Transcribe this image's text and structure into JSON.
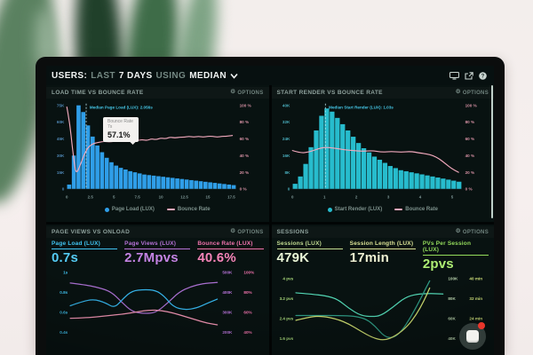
{
  "header": {
    "title_prefix": "USERS:",
    "seg_last": "LAST",
    "seg_days": "7 DAYS",
    "seg_using": "USING",
    "seg_median": "MEDIAN"
  },
  "panels": [
    {
      "title": "LOAD TIME VS BOUNCE RATE",
      "options_label": "OPTIONS"
    },
    {
      "title": "START RENDER VS BOUNCE RATE",
      "options_label": "OPTIONS"
    },
    {
      "title": "PAGE VIEWS VS ONLOAD",
      "options_label": "OPTIONS",
      "metrics": [
        {
          "label": "Page Load (LUX)",
          "value": "0.7s",
          "color": "#41c4f2",
          "value_color": "#55ccf5"
        },
        {
          "label": "Page Views (LUX)",
          "value": "2.7Mpvs",
          "color": "#b873d9",
          "value_color": "#c483e3"
        },
        {
          "label": "Bounce Rate (LUX)",
          "value": "40.6%",
          "color": "#f173ad",
          "value_color": "#f584b8"
        }
      ]
    },
    {
      "title": "SESSIONS",
      "options_label": "OPTIONS",
      "metrics": [
        {
          "label": "Sessions (LUX)",
          "value": "479K",
          "color": "#c4dd92",
          "value_color": "#e9f5d6"
        },
        {
          "label": "Session Length (LUX)",
          "value": "17min",
          "color": "#dbe295",
          "value_color": "#eef0d2"
        },
        {
          "label": "PVs Per Session (LUX)",
          "value": "2pvs",
          "color": "#94dc5c",
          "value_color": "#aeee74"
        }
      ]
    }
  ],
  "chart_data": [
    {
      "type": "bar",
      "name": "load_time_vs_bounce_rate",
      "title": "LOAD TIME VS BOUNCE RATE",
      "x_unit": "seconds",
      "x_max": 18,
      "x_ticks": [
        "0",
        "2.5",
        "5",
        "7.5",
        "10",
        "12.5",
        "15",
        "17.5"
      ],
      "y_left_ticks": [
        "75K",
        "60K",
        "45K",
        "30K",
        "15K",
        "0"
      ],
      "y_left_max_k": 75,
      "y_right_ticks": [
        "100 %",
        "80 %",
        "60 %",
        "40 %",
        "20 %",
        "0 %"
      ],
      "bar_color": "#2f9ee8",
      "line_color": "#f2a9bd",
      "axis_left_color": "#4f87b5",
      "axis_x_color": "#7f9898",
      "axis_right_color": "#d791a4",
      "bars_k": [
        4,
        30,
        75,
        69,
        57,
        47,
        39,
        33,
        28,
        24,
        21,
        19,
        17.5,
        16,
        15,
        14,
        13,
        12.5,
        12,
        11.5,
        11,
        10.5,
        10,
        9.5,
        9,
        8.5,
        8,
        7.5,
        7,
        6.5,
        6,
        5.5,
        5,
        4.5,
        4,
        3.5
      ],
      "bounce_line": [
        [
          0,
          98
        ],
        [
          0.3,
          80
        ],
        [
          0.6,
          48
        ],
        [
          0.9,
          22
        ],
        [
          1.1,
          20
        ],
        [
          1.4,
          28
        ],
        [
          1.8,
          40
        ],
        [
          2.2,
          49
        ],
        [
          2.6,
          53
        ],
        [
          3,
          55
        ],
        [
          3.5,
          56
        ],
        [
          4,
          57
        ],
        [
          4.5,
          56
        ],
        [
          5,
          57
        ],
        [
          5.5,
          58
        ],
        [
          6,
          57
        ],
        [
          6.5,
          57
        ],
        [
          7,
          57.1
        ],
        [
          7.5,
          58
        ],
        [
          8,
          59
        ],
        [
          8.5,
          58
        ],
        [
          9,
          60
        ],
        [
          9.5,
          59
        ],
        [
          10,
          61
        ],
        [
          10.5,
          60
        ],
        [
          11,
          62
        ],
        [
          11.5,
          61
        ],
        [
          12,
          62
        ],
        [
          12.5,
          62
        ],
        [
          13,
          63
        ],
        [
          13.5,
          62
        ],
        [
          14,
          63
        ],
        [
          14.5,
          62
        ],
        [
          15,
          63
        ],
        [
          15.5,
          63
        ],
        [
          16,
          62
        ],
        [
          16.5,
          63
        ],
        [
          17,
          63
        ],
        [
          17.6,
          64
        ]
      ],
      "median": {
        "x": 2.056,
        "label": "Median Page Load (LUX): 2.056s"
      },
      "tooltip": {
        "title": "Bounce Rate",
        "sub": "7s",
        "value": "57.1%",
        "anchor_x": 7,
        "anchor_pct": 57.1
      },
      "legend": [
        {
          "label": "Page Load (LUX)",
          "marker": "dot",
          "color": "#2f9ee8"
        },
        {
          "label": "Bounce Rate",
          "marker": "dash",
          "color": "#f2a9bd"
        }
      ]
    },
    {
      "type": "bar",
      "name": "start_render_vs_bounce_rate",
      "title": "START RENDER VS BOUNCE RATE",
      "x_unit": "seconds",
      "x_max": 5.3,
      "x_ticks": [
        "0",
        "1",
        "2",
        "3",
        "4",
        "5"
      ],
      "y_left_ticks": [
        "40K",
        "32K",
        "24K",
        "16K",
        "8K",
        "0"
      ],
      "y_left_max_k": 40,
      "y_right_ticks": [
        "100 %",
        "80 %",
        "60 %",
        "40 %",
        "20 %",
        "0 %"
      ],
      "bar_color": "#27bccd",
      "line_color": "#f2a9bd",
      "axis_left_color": "#49aebd",
      "axis_x_color": "#7f9898",
      "axis_right_color": "#d791a4",
      "bars_k": [
        2.5,
        6,
        12,
        20,
        28,
        35,
        38.5,
        37,
        34,
        31,
        28,
        25,
        22,
        19.5,
        17.5,
        15.5,
        14,
        12.5,
        11,
        10,
        9,
        8.5,
        8,
        7.5,
        7,
        6.5,
        6,
        5.5,
        5,
        4.5,
        4,
        3.5
      ],
      "bounce_line": [
        [
          0,
          46
        ],
        [
          0.25,
          43
        ],
        [
          0.5,
          44
        ],
        [
          0.8,
          48
        ],
        [
          1,
          50
        ],
        [
          1.3,
          49
        ],
        [
          1.6,
          47
        ],
        [
          1.9,
          46
        ],
        [
          2.2,
          45
        ],
        [
          2.5,
          46
        ],
        [
          2.8,
          44
        ],
        [
          3.1,
          45
        ],
        [
          3.4,
          44
        ],
        [
          3.7,
          45
        ],
        [
          4,
          43
        ],
        [
          4.2,
          42
        ],
        [
          4.4,
          40
        ],
        [
          4.6,
          36
        ],
        [
          4.8,
          30
        ],
        [
          5,
          24
        ],
        [
          5.2,
          20
        ]
      ],
      "median": {
        "x": 1.03,
        "label": "Median Start Render (LUX): 1.03s"
      },
      "legend": [
        {
          "label": "Start Render (LUX)",
          "marker": "dot",
          "color": "#27bccd"
        },
        {
          "label": "Bounce Rate",
          "marker": "dash",
          "color": "#f2a9bd"
        }
      ]
    },
    {
      "type": "line",
      "name": "page_views_vs_onload",
      "title": "PAGE VIEWS VS ONLOAD",
      "y_left": {
        "ticks": [
          "1s",
          "0.8s",
          "0.6s",
          "0.4s"
        ],
        "color": "#41c4f2"
      },
      "y_right_cols": [
        {
          "ticks": [
            "500K",
            "400K",
            "300K",
            "200K"
          ],
          "color": "#b873d9"
        },
        {
          "ticks": [
            "100%",
            "80%",
            "60%",
            "40%"
          ],
          "color": "#f173ad"
        }
      ],
      "series": [
        {
          "name": "Page Views",
          "axis": "right1",
          "color": "#a96fd0",
          "points_pct": [
            [
              0,
              18
            ],
            [
              10,
              21
            ],
            [
              20,
              26
            ],
            [
              28,
              33
            ],
            [
              35,
              50
            ],
            [
              42,
              66
            ],
            [
              50,
              69
            ],
            [
              58,
              68
            ],
            [
              66,
              52
            ],
            [
              74,
              33
            ],
            [
              82,
              24
            ],
            [
              90,
              19
            ],
            [
              100,
              17
            ]
          ]
        },
        {
          "name": "Page Load",
          "axis": "left",
          "color": "#35b2e8",
          "points_pct": [
            [
              0,
              56
            ],
            [
              8,
              49
            ],
            [
              16,
              45
            ],
            [
              24,
              51
            ],
            [
              30,
              60
            ],
            [
              36,
              44
            ],
            [
              42,
              31
            ],
            [
              50,
              29
            ],
            [
              58,
              30
            ],
            [
              64,
              40
            ],
            [
              70,
              58
            ],
            [
              78,
              63
            ],
            [
              86,
              60
            ],
            [
              93,
              52
            ],
            [
              100,
              45
            ]
          ]
        },
        {
          "name": "Bounce Rate",
          "axis": "right2",
          "color": "#ef93b2",
          "points_pct": [
            [
              0,
              77
            ],
            [
              12,
              76
            ],
            [
              24,
              73
            ],
            [
              36,
              70
            ],
            [
              46,
              66
            ],
            [
              54,
              63
            ],
            [
              62,
              64
            ],
            [
              70,
              68
            ],
            [
              78,
              74
            ],
            [
              86,
              80
            ],
            [
              93,
              85
            ],
            [
              100,
              88
            ]
          ]
        }
      ]
    },
    {
      "type": "line",
      "name": "sessions",
      "title": "SESSIONS",
      "y_left": {
        "ticks": [
          "4 pvs",
          "3.2 pvs",
          "2.4 pvs",
          "1.6 pvs"
        ],
        "color": "#a8d87a"
      },
      "y_right_cols": [
        {
          "ticks": [
            "100K",
            "80K",
            "60K",
            "40K"
          ],
          "color": "#b9d3ad"
        },
        {
          "ticks": [
            "40 min",
            "32 min",
            "24 min",
            ""
          ],
          "color": "#cfe07a"
        }
      ],
      "series": [
        {
          "name": "Sessions",
          "axis": "right1",
          "color": "#52d6b4",
          "points_pct": [
            [
              0,
              24
            ],
            [
              10,
              26
            ],
            [
              20,
              29
            ],
            [
              28,
              34
            ],
            [
              36,
              50
            ],
            [
              44,
              62
            ],
            [
              52,
              64
            ],
            [
              58,
              62
            ],
            [
              66,
              48
            ],
            [
              74,
              32
            ],
            [
              82,
              26
            ],
            [
              92,
              25
            ],
            [
              100,
              26
            ]
          ]
        },
        {
          "name": "PVs Per Session",
          "axis": "left",
          "color": "#2f9a84",
          "points_pct": [
            [
              0,
              62
            ],
            [
              15,
              62
            ],
            [
              30,
              62
            ],
            [
              40,
              63
            ],
            [
              48,
              68
            ],
            [
              54,
              80
            ],
            [
              60,
              97
            ],
            [
              66,
              100
            ],
            [
              72,
              88
            ],
            [
              78,
              65
            ],
            [
              84,
              38
            ],
            [
              88,
              18
            ],
            [
              91,
              4
            ]
          ]
        },
        {
          "name": "Session Length",
          "axis": "right2",
          "color": "#ccdb6f",
          "points_pct": [
            [
              0,
              70
            ],
            [
              10,
              64
            ],
            [
              18,
              63
            ],
            [
              28,
              68
            ],
            [
              36,
              76
            ],
            [
              44,
              88
            ],
            [
              52,
              99
            ],
            [
              60,
              104
            ],
            [
              68,
              96
            ],
            [
              76,
              80
            ],
            [
              82,
              60
            ],
            [
              87,
              38
            ],
            [
              91,
              16
            ]
          ]
        }
      ]
    }
  ],
  "colors": {
    "screen_bg": "#071010",
    "panel_bg": "#081211",
    "accent_blue": "#2f9ee8",
    "accent_cyan": "#27bccd",
    "accent_pink": "#f2a9bd",
    "accent_purple": "#a96fd0",
    "accent_green": "#52d6b4"
  }
}
